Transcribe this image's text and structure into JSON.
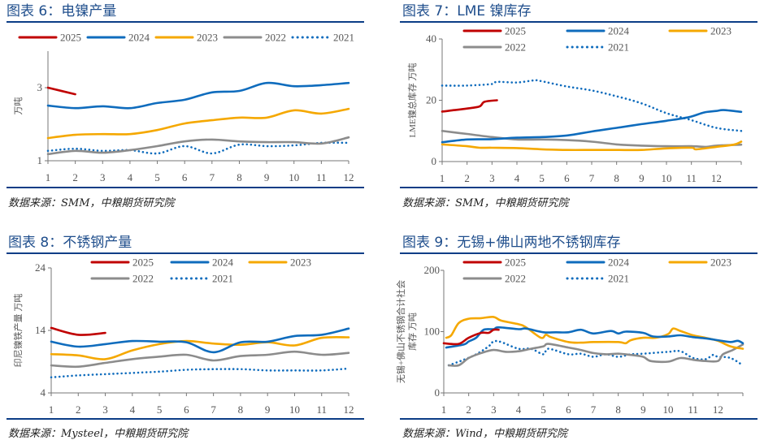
{
  "series_colors": {
    "2025": "#C00000",
    "2024": "#0F6CBD",
    "2023": "#F5A800",
    "2022": "#8C8C8C",
    "2021": "#0F6CBD"
  },
  "chart_data": [
    {
      "type": "line",
      "title": "图表 6：电镍产量",
      "source": "数据来源：SMM，中粮期货研究院",
      "ylabel": "万吨",
      "ylim": [
        1,
        4
      ],
      "yticks": [
        1,
        3
      ],
      "xlim": [
        1,
        12
      ],
      "xticks": [
        "1",
        "2",
        "3",
        "4",
        "5",
        "6",
        "7",
        "8",
        "9",
        "10",
        "11",
        "12"
      ],
      "grid": false,
      "legend": "top",
      "series": [
        {
          "name": "2025",
          "style": "solid",
          "x": [
            1,
            2
          ],
          "y": [
            3.0,
            2.82
          ]
        },
        {
          "name": "2024",
          "style": "solid",
          "x": [
            1,
            2,
            3,
            4,
            5,
            6,
            7,
            8,
            9,
            10,
            11,
            12
          ],
          "y": [
            2.51,
            2.44,
            2.49,
            2.44,
            2.58,
            2.67,
            2.87,
            2.91,
            3.13,
            3.04,
            3.07,
            3.13
          ]
        },
        {
          "name": "2023",
          "style": "solid",
          "x": [
            1,
            2,
            3,
            4,
            5,
            6,
            7,
            8,
            9,
            10,
            11,
            12
          ],
          "y": [
            1.62,
            1.71,
            1.73,
            1.73,
            1.84,
            2.02,
            2.11,
            2.18,
            2.18,
            2.38,
            2.29,
            2.42
          ]
        },
        {
          "name": "2022",
          "style": "solid",
          "x": [
            1,
            2,
            3,
            4,
            5,
            6,
            7,
            8,
            9,
            10,
            11,
            12
          ],
          "y": [
            1.18,
            1.27,
            1.22,
            1.29,
            1.4,
            1.53,
            1.58,
            1.53,
            1.51,
            1.51,
            1.47,
            1.64
          ]
        },
        {
          "name": "2021",
          "style": "dotted",
          "x": [
            1,
            2,
            3,
            4,
            5,
            6,
            7,
            8,
            9,
            10,
            11,
            12
          ],
          "y": [
            1.27,
            1.33,
            1.27,
            1.29,
            1.2,
            1.4,
            1.2,
            1.44,
            1.4,
            1.42,
            1.49,
            1.49
          ]
        }
      ]
    },
    {
      "type": "line",
      "title": "图表 7：LME 镍库存",
      "source": "数据来源：SMM，中粮期货研究院",
      "ylabel": "LME镍总库存 万吨",
      "ylim": [
        0,
        40
      ],
      "yticks": [
        0,
        20,
        40
      ],
      "xlim": [
        1,
        13
      ],
      "xticks": [
        "1",
        "2",
        "3",
        "4",
        "5",
        "6",
        "7",
        "8",
        "9",
        "10",
        "11",
        "12"
      ],
      "grid": false,
      "legend": "top",
      "series": [
        {
          "name": "2025",
          "style": "solid",
          "x": [
            1,
            1.5,
            2,
            2.5,
            2.7,
            3.2
          ],
          "y": [
            16.3,
            16.8,
            17.3,
            18.0,
            19.5,
            20
          ]
        },
        {
          "name": "2024",
          "style": "solid",
          "x": [
            1,
            2,
            3,
            4,
            5,
            6,
            7,
            8,
            9,
            10,
            10.9,
            11.5,
            12,
            12.3,
            13
          ],
          "y": [
            6.3,
            7.2,
            7.3,
            7.8,
            8,
            8.5,
            9.8,
            11,
            12.2,
            13.3,
            14.5,
            16,
            16.5,
            16.8,
            16.2
          ]
        },
        {
          "name": "2023",
          "style": "solid",
          "x": [
            1,
            2,
            2.5,
            3,
            4,
            5,
            6,
            7,
            8,
            9,
            10,
            11,
            11.2,
            12,
            12.7,
            13
          ],
          "y": [
            5.6,
            5,
            4.5,
            4.5,
            4.4,
            4,
            3.8,
            3.8,
            3.8,
            3.8,
            4.3,
            4.5,
            4.0,
            4.8,
            5.5,
            6.5
          ]
        },
        {
          "name": "2022",
          "style": "solid",
          "x": [
            1,
            2,
            3,
            4,
            5,
            6,
            7,
            8,
            9,
            10,
            11,
            11.6,
            12,
            13
          ],
          "y": [
            10,
            9,
            8,
            7.2,
            7.2,
            7,
            6.5,
            5.6,
            5.2,
            5,
            5,
            4.8,
            5.2,
            5.5
          ]
        },
        {
          "name": "2021",
          "style": "dotted",
          "x": [
            1,
            2,
            3,
            3.2,
            4,
            4.7,
            5,
            6,
            7,
            8,
            9,
            10,
            11,
            12,
            13
          ],
          "y": [
            24.8,
            24.8,
            25.3,
            26,
            25.8,
            26.5,
            26.2,
            24.5,
            23.2,
            21.3,
            19,
            15.8,
            13.5,
            11,
            10
          ]
        }
      ]
    },
    {
      "type": "line",
      "title": "图表 8：不锈钢产量",
      "source": "数据来源：Mysteel，中粮期货研究院",
      "ylabel": "印尼镍铁产量 万吨",
      "ylim": [
        4,
        24
      ],
      "yticks": [
        4,
        14,
        24
      ],
      "xlim": [
        1,
        12
      ],
      "xticks": [
        "1",
        "2",
        "3",
        "4",
        "5",
        "6",
        "7",
        "8",
        "9",
        "10",
        "11",
        "12"
      ],
      "grid": false,
      "legend": "top",
      "series": [
        {
          "name": "2025",
          "style": "solid",
          "x": [
            1,
            2,
            3
          ],
          "y": [
            14.4,
            13.3,
            13.6
          ]
        },
        {
          "name": "2024",
          "style": "solid",
          "x": [
            1,
            2,
            3,
            4,
            5,
            6,
            7,
            8,
            9,
            10,
            11,
            12
          ],
          "y": [
            12.2,
            11.4,
            11.8,
            12.3,
            12.2,
            12.1,
            10.5,
            12.1,
            12.2,
            13.1,
            13.3,
            14.3
          ]
        },
        {
          "name": "2023",
          "style": "solid",
          "x": [
            1,
            2,
            3,
            4,
            5,
            6,
            7,
            8,
            9,
            10,
            11,
            12
          ],
          "y": [
            10.2,
            10.0,
            9.4,
            10.8,
            11.8,
            12.3,
            11.9,
            11.7,
            12.1,
            11.6,
            12.8,
            12.9
          ]
        },
        {
          "name": "2022",
          "style": "solid",
          "x": [
            1,
            2,
            3,
            4,
            5,
            6,
            7,
            8,
            9,
            10,
            11,
            12
          ],
          "y": [
            8.4,
            8.2,
            8.8,
            9.4,
            9.8,
            10.1,
            9.2,
            9.9,
            10.1,
            10.6,
            10.1,
            10.4
          ]
        },
        {
          "name": "2021",
          "style": "dotted",
          "x": [
            1,
            2,
            3,
            4,
            5,
            6,
            7,
            8,
            9,
            10,
            11,
            12
          ],
          "y": [
            6.5,
            6.8,
            7.0,
            7.2,
            7.4,
            7.7,
            7.8,
            7.8,
            7.6,
            7.6,
            7.6,
            7.9
          ]
        }
      ]
    },
    {
      "type": "line",
      "title": "图表 9：无锡+佛山两地不锈钢库存",
      "source": "数据来源：Wind，中粮期货研究院",
      "ylabel": "无锡+佛山不锈钢合计社会",
      "ylabel2": "库存 万吨",
      "ylim": [
        0,
        200
      ],
      "yticks": [
        0,
        100,
        200
      ],
      "xlim": [
        1,
        13
      ],
      "xticks": [
        "1",
        "2",
        "3",
        "4",
        "5",
        "6",
        "7",
        "8",
        "9",
        "10",
        "11",
        "12"
      ],
      "grid": false,
      "legend": "top",
      "series": [
        {
          "name": "2025",
          "style": "solid",
          "x": [
            1,
            1.6,
            2,
            2.5,
            2.8,
            3,
            3.2
          ],
          "y": [
            81,
            80,
            90,
            98,
            98,
            103,
            103
          ]
        },
        {
          "name": "2024",
          "style": "solid",
          "x": [
            1.1,
            1.8,
            2,
            2.3,
            2.6,
            3,
            3.2,
            4,
            4.3,
            5,
            5.5,
            6,
            6.5,
            7,
            7.7,
            8,
            8.3,
            9,
            9.4,
            10,
            10.5,
            11,
            11.5,
            12,
            12.5,
            12.8,
            13
          ],
          "y": [
            74,
            79,
            84,
            90,
            103,
            104,
            107,
            104,
            105,
            99,
            99,
            99,
            103,
            97,
            101,
            97,
            100,
            98,
            92,
            92,
            94,
            91,
            89,
            86,
            83,
            85,
            81
          ]
        },
        {
          "name": "2023",
          "style": "solid",
          "x": [
            1.1,
            1.3,
            1.6,
            2,
            2.5,
            3,
            3.3,
            4,
            4.3,
            4.9,
            5.1,
            5.3,
            6,
            6.5,
            7,
            8,
            8.3,
            8.5,
            9,
            9.5,
            10,
            10.2,
            10.5,
            11,
            11.5,
            12,
            12.5,
            13
          ],
          "y": [
            90,
            94,
            114,
            121,
            122,
            124,
            118,
            112,
            107,
            90,
            95,
            91,
            83,
            82,
            83,
            83,
            81,
            86,
            90,
            90,
            96,
            105,
            101,
            94,
            90,
            85,
            76,
            72
          ]
        },
        {
          "name": "2022",
          "style": "solid",
          "x": [
            1.2,
            1.6,
            2,
            2.5,
            3,
            3.5,
            4,
            4.5,
            5,
            5.2,
            6,
            6.5,
            7,
            7.5,
            8,
            8.5,
            9,
            9.3,
            10,
            10.5,
            11,
            11.5,
            12,
            12.2,
            12.6,
            13
          ],
          "y": [
            45,
            45,
            57,
            65,
            70,
            67,
            68,
            72,
            76,
            80,
            74,
            70,
            65,
            63,
            64,
            62,
            59,
            52,
            51,
            57,
            54,
            52,
            52,
            63,
            70,
            79
          ]
        },
        {
          "name": "2021",
          "style": "dotted",
          "x": [
            1.2,
            1.8,
            2.3,
            2.8,
            3,
            3.3,
            4,
            4.5,
            5,
            5.2,
            6,
            6.5,
            7,
            7.5,
            8,
            8.5,
            9,
            10,
            10.5,
            11,
            11.5,
            11.8,
            12,
            12.5,
            13
          ],
          "y": [
            45,
            54,
            63,
            76,
            84,
            83,
            72,
            72,
            63,
            72,
            63,
            64,
            59,
            63,
            59,
            63,
            64,
            67,
            68,
            57,
            55,
            62,
            59,
            57,
            45
          ]
        }
      ]
    }
  ]
}
